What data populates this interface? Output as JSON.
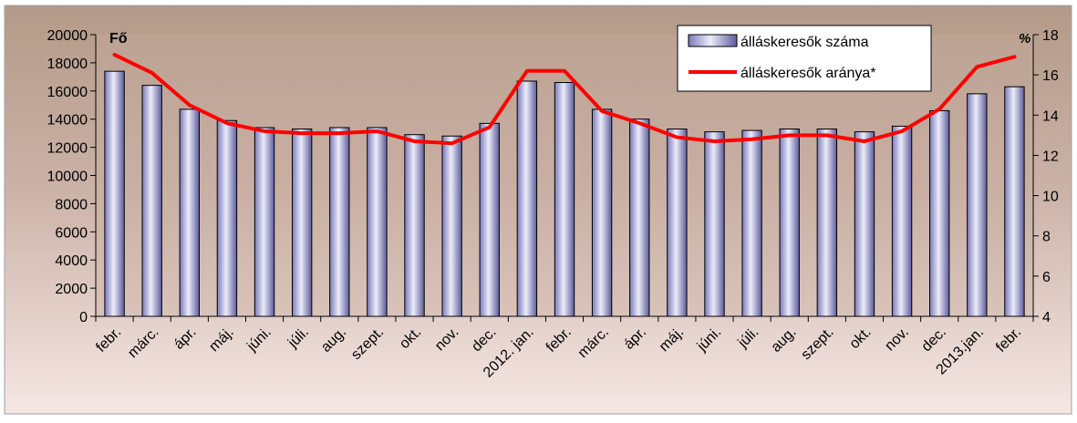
{
  "chart_data": {
    "type": "bar",
    "y_left_label": "Fő",
    "y_right_label": "%",
    "y_left_lim": [
      0,
      20000
    ],
    "y_left_ticks": [
      "0",
      "2000",
      "4000",
      "6000",
      "8000",
      "10000",
      "12000",
      "14000",
      "16000",
      "18000",
      "20000"
    ],
    "y_right_lim": [
      4,
      18
    ],
    "y_right_ticks": [
      "4",
      "6",
      "8",
      "10",
      "12",
      "14",
      "16",
      "18"
    ],
    "grid": false,
    "legend_position": "top-right",
    "categories": [
      "febr.",
      "márc.",
      "ápr.",
      "máj.",
      "júni.",
      "júli.",
      "aug.",
      "szept.",
      "okt.",
      "nov.",
      "dec.",
      "2012. jan.",
      "febr.",
      "márc.",
      "ápr.",
      "máj.",
      "júni.",
      "júli.",
      "aug.",
      "szept.",
      "okt.",
      "nov.",
      "dec.",
      "2013.jan.",
      "febr."
    ],
    "series": [
      {
        "name": "álláskeresők száma",
        "type": "bar",
        "axis": "left",
        "color": "#9c9cd0",
        "values": [
          17400,
          16400,
          14700,
          13900,
          13400,
          13300,
          13400,
          13400,
          12900,
          12800,
          13700,
          16700,
          16600,
          14700,
          14000,
          13300,
          13100,
          13200,
          13300,
          13300,
          13100,
          13500,
          14600,
          15800,
          16300
        ]
      },
      {
        "name": "álláskeresők aránya*",
        "type": "line",
        "axis": "right",
        "color": "#ff0000",
        "values": [
          17.0,
          16.1,
          14.5,
          13.6,
          13.2,
          13.1,
          13.1,
          13.2,
          12.7,
          12.6,
          13.4,
          16.2,
          16.2,
          14.2,
          13.6,
          12.9,
          12.7,
          12.8,
          13.0,
          13.0,
          12.7,
          13.2,
          14.3,
          16.4,
          16.9
        ]
      }
    ]
  },
  "colors": {
    "background_top": "#b39a88",
    "background_bottom": "#f6e7e4",
    "plot_area": "#c4a89d",
    "bar_light": "#e8e8f8",
    "bar_dark": "#6a6aa8",
    "line": "#ff0000"
  }
}
